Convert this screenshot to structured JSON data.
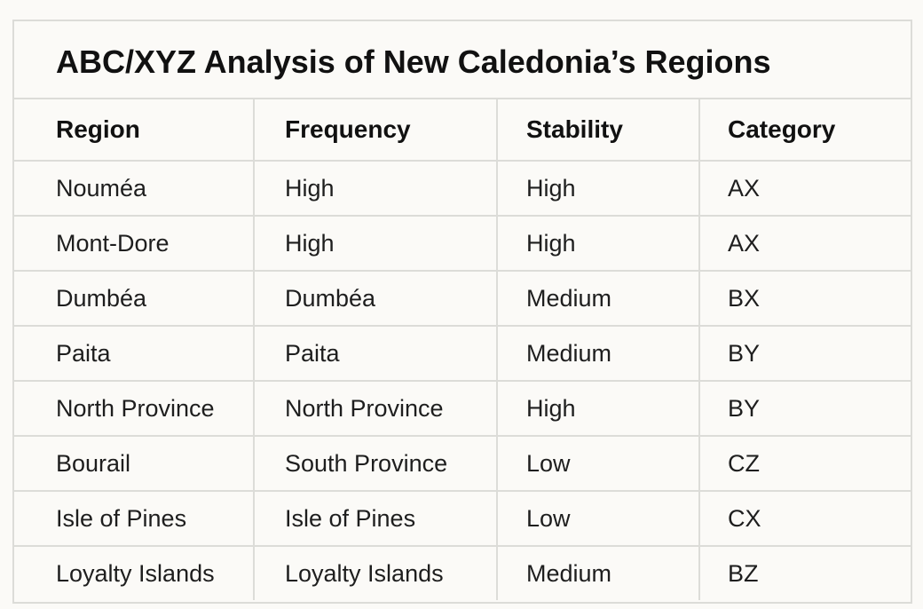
{
  "title": "ABC/XYZ Analysis of New Caledonia’s Regions",
  "table": {
    "header": [
      "Region",
      "Frequency",
      "Stability",
      "Category"
    ],
    "rows": [
      [
        "Nouméa",
        "High",
        "High",
        "AX"
      ],
      [
        "Mont-Dore",
        "High",
        "High",
        "AX"
      ],
      [
        "Dumbéa",
        "Dumbéa",
        "Medium",
        "BX"
      ],
      [
        "Paita",
        "Paita",
        "Medium",
        "BY"
      ],
      [
        "North Province",
        "North Province",
        "High",
        "BY"
      ],
      [
        "Bourail",
        "South Province",
        "Low",
        "CZ"
      ],
      [
        "Isle of Pines",
        "Isle of Pines",
        "Low",
        "CX"
      ],
      [
        "Loyalty Islands",
        "Loyalty Islands",
        "Medium",
        "BZ"
      ]
    ]
  }
}
